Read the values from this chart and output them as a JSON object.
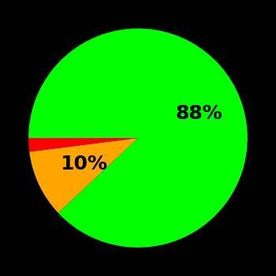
{
  "slices": [
    88,
    10,
    2
  ],
  "colors": [
    "#00ff00",
    "#ffa500",
    "#ff0000"
  ],
  "labels": [
    "88%",
    "10%",
    ""
  ],
  "background_color": "#000000",
  "text_color": "#000000",
  "label_fontsize": 18,
  "label_fontweight": "bold",
  "startangle": 180,
  "label_distances": [
    0.6,
    0.55,
    0.0
  ]
}
